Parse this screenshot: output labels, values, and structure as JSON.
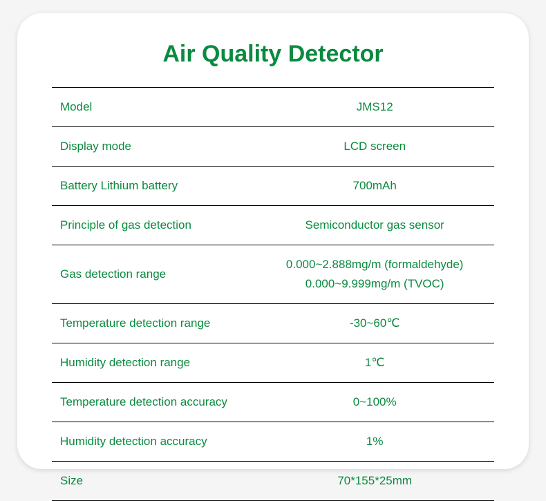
{
  "title": "Air Quality Detector",
  "text_color": "#0a8a3f",
  "title_color": "#0a8a3f",
  "background_color": "#ffffff",
  "border_color": "#000000",
  "title_fontsize": 34,
  "cell_fontsize": 17,
  "rows": [
    {
      "label": "Model",
      "value": "JMS12"
    },
    {
      "label": "Display mode",
      "value": "LCD screen"
    },
    {
      "label": "Battery Lithium battery",
      "value": "700mAh"
    },
    {
      "label": "Principle of gas detection",
      "value": "Semiconductor gas sensor"
    },
    {
      "label": "Gas detection range",
      "value": "0.000~2.888mg/m (formaldehyde)\n0.000~9.999mg/m (TVOC)"
    },
    {
      "label": "Temperature detection range",
      "value": "-30~60℃"
    },
    {
      "label": "Humidity detection range",
      "value": "1℃"
    },
    {
      "label": "Temperature detection accuracy",
      "value": "0~100%"
    },
    {
      "label": "Humidity detection accuracy",
      "value": "1%"
    },
    {
      "label": "Size",
      "value": "70*155*25mm"
    }
  ]
}
